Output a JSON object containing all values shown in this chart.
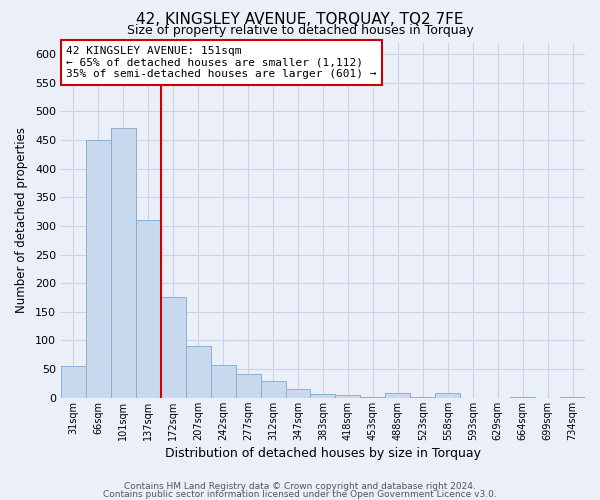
{
  "title": "42, KINGSLEY AVENUE, TORQUAY, TQ2 7FE",
  "subtitle": "Size of property relative to detached houses in Torquay",
  "xlabel": "Distribution of detached houses by size in Torquay",
  "ylabel": "Number of detached properties",
  "bar_labels": [
    "31sqm",
    "66sqm",
    "101sqm",
    "137sqm",
    "172sqm",
    "207sqm",
    "242sqm",
    "277sqm",
    "312sqm",
    "347sqm",
    "383sqm",
    "418sqm",
    "453sqm",
    "488sqm",
    "523sqm",
    "558sqm",
    "593sqm",
    "629sqm",
    "664sqm",
    "699sqm",
    "734sqm"
  ],
  "bar_heights": [
    55,
    450,
    470,
    310,
    175,
    90,
    58,
    42,
    30,
    15,
    7,
    5,
    2,
    8,
    2,
    8,
    0,
    0,
    2,
    0,
    2
  ],
  "bar_color": "#c8d9ee",
  "bar_edge_color": "#8ab0d0",
  "ylim": [
    0,
    620
  ],
  "yticks": [
    0,
    50,
    100,
    150,
    200,
    250,
    300,
    350,
    400,
    450,
    500,
    550,
    600
  ],
  "property_line_color": "#cc0000",
  "annotation_title": "42 KINGSLEY AVENUE: 151sqm",
  "annotation_line1": "← 65% of detached houses are smaller (1,112)",
  "annotation_line2": "35% of semi-detached houses are larger (601) →",
  "annotation_box_color": "#ffffff",
  "annotation_box_edge": "#cc0000",
  "grid_color": "#c8d4e8",
  "bg_color": "#eaeff8",
  "plot_bg_color": "#eaeff8",
  "footer1": "Contains HM Land Registry data © Crown copyright and database right 2024.",
  "footer2": "Contains public sector information licensed under the Open Government Licence v3.0."
}
